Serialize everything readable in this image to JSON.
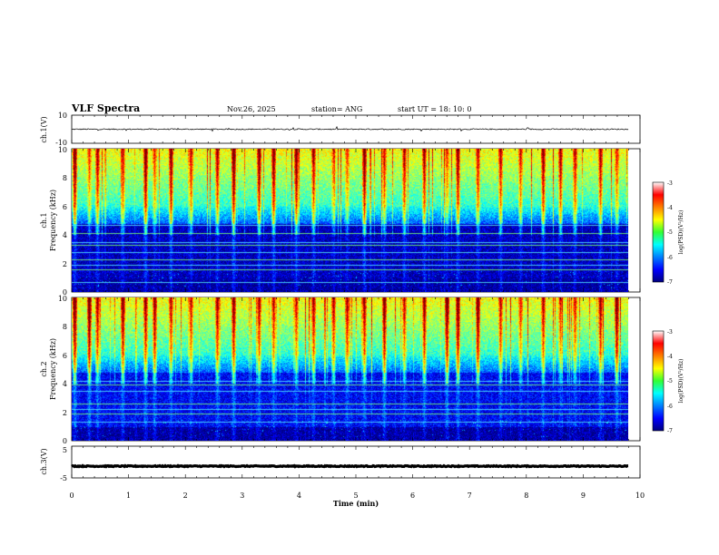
{
  "header": {
    "title": "VLF Spectra",
    "date": "Nov.26, 2025",
    "station": "station= ANG",
    "start": "start  UT =   18: 10: 0"
  },
  "chart_data": [
    {
      "type": "line",
      "name": "ch1-waveform",
      "ylabel": "ch.1(V)",
      "ylim": [
        -10,
        10
      ],
      "ytick_labels": [
        "10",
        "-10"
      ],
      "baseline": 0,
      "amplitude": 0.8
    },
    {
      "type": "heatmap",
      "name": "ch1-spectrogram",
      "ylabel_channel": "ch.1",
      "ylabel": "Frequency  (kHz)",
      "ylim": [
        0,
        10
      ],
      "ytick_labels": [
        "0",
        "2",
        "4",
        "6",
        "8",
        "10"
      ],
      "xlim": [
        0,
        10
      ],
      "data_end_min": 9.8,
      "colorbar": {
        "range": [
          -7,
          -3
        ],
        "tick_labels": [
          "-3",
          "-4",
          "-5",
          "-6",
          "-7"
        ],
        "label": "log(PSD)(V²/Hz)"
      },
      "hum_lines_khz": [
        4.7,
        4.1,
        3.5,
        3.3,
        2.8,
        2.3,
        1.9,
        1.6,
        0.7
      ],
      "sferic_times_min": [
        0.05,
        0.3,
        0.45,
        0.9,
        1.3,
        1.45,
        1.75,
        2.1,
        2.55,
        2.85,
        3.3,
        3.55,
        3.95,
        4.25,
        4.6,
        4.85,
        5.15,
        5.5,
        5.85,
        6.2,
        6.6,
        6.8,
        7.15,
        7.55,
        7.9,
        8.3,
        8.6,
        8.85,
        9.3,
        9.6
      ]
    },
    {
      "type": "heatmap",
      "name": "ch2-spectrogram",
      "ylabel_channel": "ch.2",
      "ylabel": "Frequency  (kHz)",
      "ylim": [
        0,
        10
      ],
      "ytick_labels": [
        "0",
        "2",
        "4",
        "6",
        "8",
        "10"
      ],
      "xlim": [
        0,
        10
      ],
      "data_end_min": 9.8,
      "colorbar": {
        "range": [
          -7,
          -3
        ],
        "tick_labels": [
          "-3",
          "-4",
          "-5",
          "-6",
          "-7"
        ],
        "label": "log(PSD)(V²/Hz)"
      },
      "hum_lines_khz": [
        4.2,
        3.9,
        3.5,
        2.6,
        2.2,
        1.9,
        1.3
      ],
      "sferic_times_min": [
        0.05,
        0.3,
        0.45,
        0.9,
        1.3,
        1.45,
        1.75,
        2.1,
        2.55,
        2.85,
        3.3,
        3.55,
        3.95,
        4.25,
        4.6,
        4.85,
        5.15,
        5.5,
        5.85,
        6.2,
        6.6,
        6.8,
        7.15,
        7.55,
        7.9,
        8.3,
        8.6,
        8.85,
        9.3,
        9.6
      ]
    },
    {
      "type": "line",
      "name": "ch3-waveform",
      "ylabel": "ch.3(V)",
      "ylim": [
        -5,
        5
      ],
      "ytick_labels": [
        "5",
        "-5"
      ],
      "baseline": -1.3,
      "amplitude": 0.3
    }
  ],
  "xaxis": {
    "label": "Time  (min)",
    "range": [
      0,
      10
    ],
    "tick_labels": [
      "0",
      "1",
      "2",
      "3",
      "4",
      "5",
      "6",
      "7",
      "8",
      "9",
      "10"
    ]
  }
}
